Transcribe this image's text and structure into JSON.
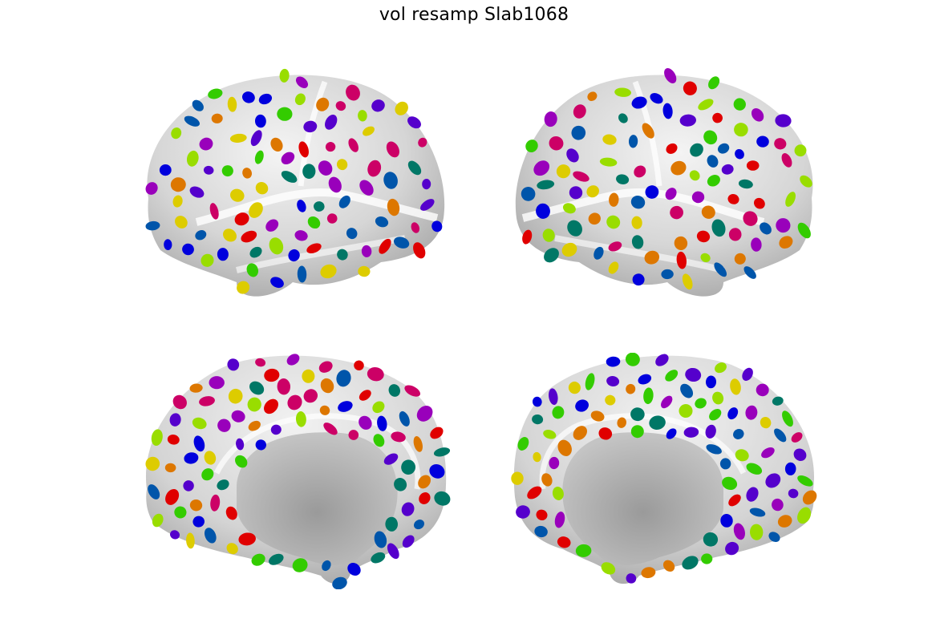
{
  "figure": {
    "title": "vol resamp Slab1068"
  },
  "views": [
    {
      "name": "left-lateral",
      "hemisphere": "left",
      "surface": "lateral"
    },
    {
      "name": "right-lateral",
      "hemisphere": "right",
      "surface": "lateral"
    },
    {
      "name": "left-medial",
      "hemisphere": "left",
      "surface": "medial"
    },
    {
      "name": "right-medial",
      "hemisphere": "right",
      "surface": "medial"
    }
  ],
  "palette": [
    "#e00000",
    "#cc0066",
    "#9900bb",
    "#5500cc",
    "#0000dd",
    "#0055aa",
    "#007766",
    "#33cc00",
    "#99dd00",
    "#ddcc00",
    "#dd7700"
  ],
  "surface_colors": {
    "cortex": "#d8d8d8",
    "highlight": "#ffffff",
    "medial_wall": "#b4b4b4"
  }
}
